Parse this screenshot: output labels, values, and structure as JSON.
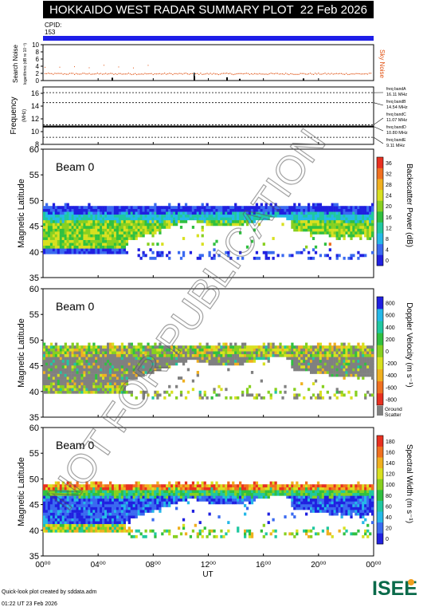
{
  "header": {
    "title": "HOKKAIDO WEST RADAR SUMMARY PLOT",
    "date": "22 Feb 2026"
  },
  "cpid": {
    "label": "CPID:",
    "value": "153"
  },
  "noise_panel": {
    "ylabel": "Search Noise",
    "ylabel_sub": "logarithmic (dB re 10⁻³)",
    "right_label": "Sky Noise",
    "ticks": [
      "0",
      "2",
      "4",
      "6",
      "8",
      "10"
    ],
    "ylim": [
      0,
      10
    ]
  },
  "freq_panel": {
    "ylabel": "Frequency",
    "ylabel_sub": "(MHz)",
    "ticks": [
      "8",
      "10",
      "12",
      "14",
      "16"
    ],
    "ylim": [
      8,
      17
    ],
    "bands": [
      {
        "name": "freq bandA",
        "value": "16.11 MHz",
        "mhz": 16.11
      },
      {
        "name": "freq bandB",
        "value": "14.54 MHz",
        "mhz": 14.54
      },
      {
        "name": "freq bandC",
        "value": "11.07 MHz",
        "mhz": 11.07
      },
      {
        "name": "freq bandD",
        "value": "10.80 MHz",
        "mhz": 10.8
      },
      {
        "name": "freq bandE",
        "value": "9.11 MHz",
        "mhz": 9.11
      }
    ]
  },
  "panels": [
    {
      "beam_label": "Beam  0",
      "ylabel": "Magnetic Latitude",
      "yticks": [
        "35",
        "40",
        "45",
        "50",
        "55",
        "60"
      ],
      "ylim": [
        35,
        60
      ],
      "colorbar_label": "Backscatter Power (dB)",
      "colorbar_ticks": [
        "0",
        "4",
        "8",
        "12",
        "16",
        "20",
        "24",
        "28",
        "32",
        "36"
      ],
      "colorbar_colors": [
        "#2020e0",
        "#3a6af0",
        "#25b8e8",
        "#20c8a0",
        "#30c040",
        "#88d020",
        "#d8e020",
        "#f0b020",
        "#f07020",
        "#e83020"
      ]
    },
    {
      "beam_label": "Beam  0",
      "ylabel": "Magnetic Latitude",
      "yticks": [
        "35",
        "40",
        "45",
        "50",
        "55",
        "60"
      ],
      "ylim": [
        35,
        60
      ],
      "colorbar_label": "Doppler Velocity (m s⁻¹)",
      "colorbar_ticks": [
        "-800",
        "-600",
        "-400",
        "-200",
        "0",
        "200",
        "400",
        "600",
        "800"
      ],
      "colorbar_colors": [
        "#e83020",
        "#f07020",
        "#f0b020",
        "#d8e020",
        "#88d020",
        "#30c040",
        "#20c8a0",
        "#25b8e8",
        "#2020e0"
      ],
      "ground_label_1": "Ground",
      "ground_label_2": "Scatter"
    },
    {
      "beam_label": "Beam  0",
      "ylabel": "Magnetic Latitude",
      "yticks": [
        "35",
        "40",
        "45",
        "50",
        "55",
        "60"
      ],
      "ylim": [
        35,
        60
      ],
      "colorbar_label": "Spectral Width (m s⁻¹)",
      "colorbar_ticks": [
        "0",
        "20",
        "40",
        "60",
        "80",
        "100",
        "120",
        "140",
        "160",
        "180"
      ],
      "colorbar_colors": [
        "#2020e0",
        "#3a6af0",
        "#25b8e8",
        "#20c8a0",
        "#30c040",
        "#88d020",
        "#d8e020",
        "#f0b020",
        "#f07020",
        "#e83020"
      ]
    }
  ],
  "xaxis": {
    "label": "UT",
    "ticks": [
      "00⁰⁰",
      "04⁰⁰",
      "08⁰⁰",
      "12⁰⁰",
      "16⁰⁰",
      "20⁰⁰",
      "00⁰⁰"
    ]
  },
  "footer": {
    "line1": "Quick-look plot created by sddata.adm",
    "line2": "01:22 UT 23 Feb 2026"
  },
  "logo": {
    "text": "ISEE"
  },
  "watermark": "NOT FOR PUBLICATION",
  "colors": {
    "ground_scatter": "#808080",
    "sky_noise": "#e05010",
    "cpid_bar": "#1e1ee8"
  }
}
